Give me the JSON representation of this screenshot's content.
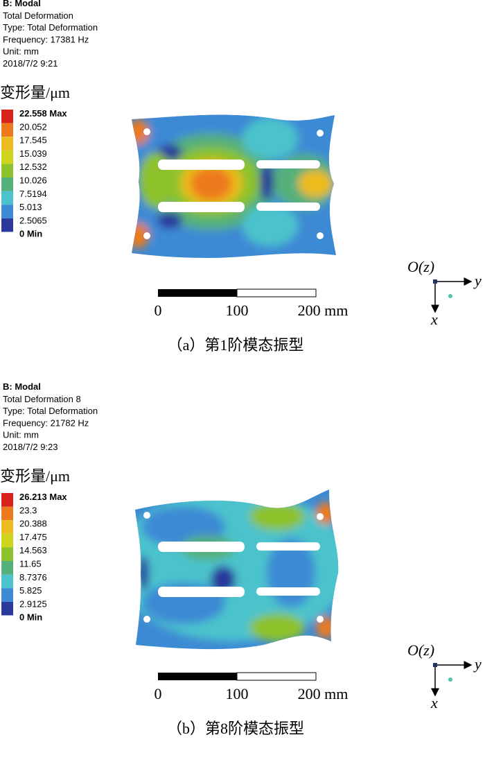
{
  "panels": [
    {
      "header": {
        "title": "B: Modal",
        "lines": [
          "Total Deformation",
          "Type: Total Deformation",
          "Frequency: 17381 Hz",
          "Unit: mm",
          "2018/7/2 9:21"
        ]
      },
      "legend_title": "变形量/μm",
      "legend": [
        "22.558 Max",
        "20.052",
        "17.545",
        "15.039",
        "12.532",
        "10.026",
        "7.5194",
        "5.013",
        "2.5065",
        "0 Min"
      ],
      "scale_labels": [
        "0",
        "100",
        "200 mm"
      ],
      "axes": {
        "origin": "O(z)",
        "y": "y",
        "x": "x"
      },
      "caption": "（a）第1阶模态振型"
    },
    {
      "header": {
        "title": "B: Modal",
        "lines": [
          "Total Deformation 8",
          "Type: Total Deformation",
          "Frequency: 21782 Hz",
          "Unit: mm",
          "2018/7/2 9:23"
        ]
      },
      "legend_title": "变形量/μm",
      "legend": [
        "26.213 Max",
        "23.3",
        "20.388",
        "17.475",
        "14.563",
        "11.65",
        "8.7376",
        "5.825",
        "2.9125",
        "0 Min"
      ],
      "scale_labels": [
        "0",
        "100",
        "200 mm"
      ],
      "axes": {
        "origin": "O(z)",
        "y": "y",
        "x": "x"
      },
      "caption": "（b）第8阶模态振型"
    }
  ]
}
